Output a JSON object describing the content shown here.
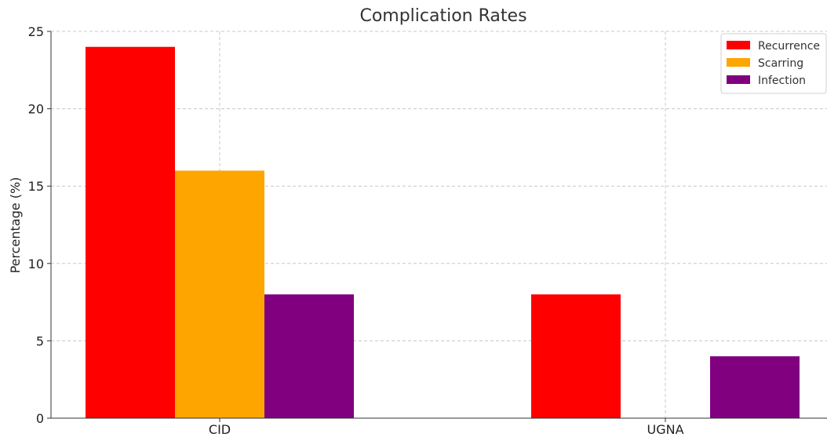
{
  "chart_data": {
    "type": "bar",
    "title": "Complication Rates",
    "xlabel": "",
    "ylabel": "Percentage (%)",
    "categories": [
      "CID",
      "UGNA"
    ],
    "series": [
      {
        "name": "Recurrence",
        "color": "#ff0000",
        "values": [
          24,
          8
        ]
      },
      {
        "name": "Scarring",
        "color": "#ffa500",
        "values": [
          16,
          0
        ]
      },
      {
        "name": "Infection",
        "color": "#800080",
        "values": [
          8,
          4
        ]
      }
    ],
    "ylim": [
      0,
      25
    ],
    "yticks": [
      0,
      5,
      10,
      15,
      20,
      25
    ],
    "grid": true,
    "legend_position": "top-right"
  }
}
